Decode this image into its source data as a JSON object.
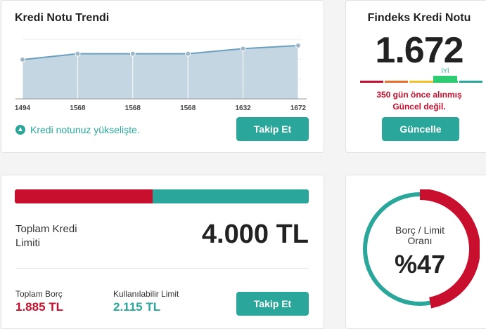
{
  "trend": {
    "title": "Kredi Notu Trendi",
    "status_text": "Kredi notunuz yükselişte.",
    "follow_label": "Takip Et",
    "colors": {
      "line": "#6a9fc0",
      "fill": "#c3d6e2",
      "point": "#9fb6c5"
    }
  },
  "chart_data": {
    "type": "area",
    "categories": [
      "1494",
      "1568",
      "1568",
      "1568",
      "1632",
      "1672"
    ],
    "values": [
      1494,
      1568,
      1568,
      1568,
      1632,
      1672
    ],
    "title": "Kredi Notu Trendi",
    "xlabel": "",
    "ylabel": "",
    "grid": true
  },
  "score": {
    "title": "Findeks Kredi Notu",
    "value": "1.672",
    "level": "İYİ",
    "note_line1": "350 gün önce alınmış",
    "note_line2": "Güncel değil.",
    "update_label": "Güncelle",
    "scale_colors": [
      "#c8102e",
      "#e8702a",
      "#f2c02e",
      "#2ecc71",
      "#2aa69a"
    ]
  },
  "limit": {
    "label_line1": "Toplam Kredi",
    "label_line2": "Limiti",
    "value": "4.000 TL",
    "used_fraction": 0.47,
    "debt_label": "Toplam Borç",
    "debt_value": "1.885 TL",
    "available_label": "Kullanılabilir Limit",
    "available_value": "2.115 TL",
    "follow_label": "Takip Et"
  },
  "ratio": {
    "label_line1": "Borç / Limit",
    "label_line2": "Oranı",
    "value": "%47",
    "fraction": 0.47,
    "colors": {
      "used": "#c8102e",
      "free": "#2aa69a"
    }
  }
}
